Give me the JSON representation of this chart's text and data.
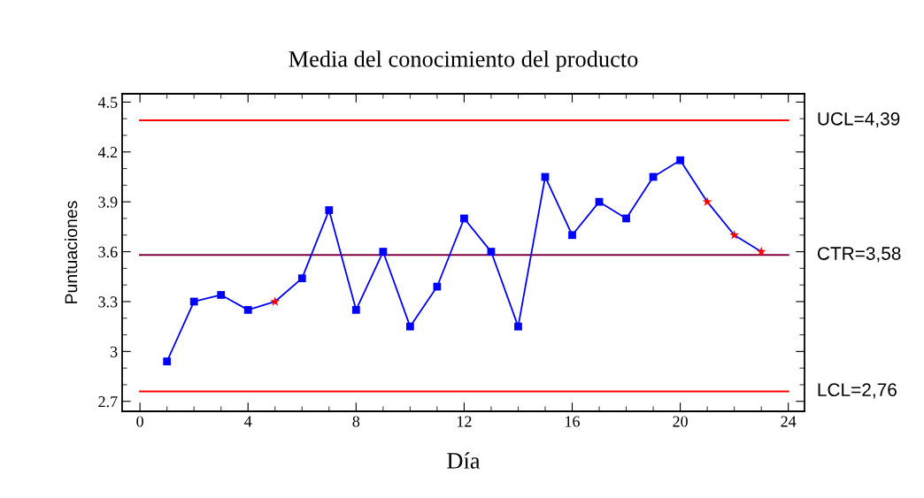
{
  "chart_data": {
    "type": "line",
    "title": "Media del conocimiento del producto",
    "xlabel": "Día",
    "ylabel": "Puntuaciones",
    "x": [
      1,
      2,
      3,
      4,
      5,
      6,
      7,
      8,
      9,
      10,
      11,
      12,
      13,
      14,
      15,
      16,
      17,
      18,
      19,
      20,
      21,
      22,
      23
    ],
    "series": [
      {
        "color": "#0000ff",
        "marker": "none",
        "values": [
          2.94,
          3.3,
          3.34,
          3.25,
          3.3,
          3.44,
          3.85,
          3.25,
          3.6,
          3.15,
          3.39,
          3.8,
          3.6,
          3.15,
          4.05,
          3.7,
          3.9,
          3.8,
          4.05,
          4.15,
          3.9,
          3.7,
          3.6
        ]
      },
      {
        "type": "scatter",
        "color": "#0000ff",
        "marker": "square",
        "x": [
          1,
          2,
          3,
          4,
          6,
          7,
          8,
          9,
          10,
          11,
          12,
          13,
          14,
          15,
          16,
          17,
          18,
          19,
          20
        ],
        "values": [
          2.94,
          3.3,
          3.34,
          3.25,
          3.44,
          3.85,
          3.25,
          3.6,
          3.15,
          3.39,
          3.8,
          3.6,
          3.15,
          4.05,
          3.7,
          3.9,
          3.8,
          4.05,
          4.15
        ]
      },
      {
        "type": "scatter",
        "color": "#ff0000",
        "marker": "star",
        "x": [
          5,
          21,
          22,
          23
        ],
        "values": [
          3.3,
          3.9,
          3.7,
          3.6
        ]
      }
    ],
    "xlim": [
      -0.66,
      24.6
    ],
    "xticks": [
      0,
      4,
      8,
      12,
      16,
      20,
      24
    ],
    "ylim": [
      2.64,
      4.55
    ],
    "yticks": [
      2.7,
      3.0,
      3.3,
      3.6,
      3.9,
      4.2,
      4.5
    ],
    "ref_lines": [
      {
        "axis": "y",
        "value": 4.39,
        "label": "UCL=4,39",
        "color": "#ff0000"
      },
      {
        "axis": "y",
        "value": 3.58,
        "label": "CTR=3,58",
        "color": "#800040"
      },
      {
        "axis": "y",
        "value": 2.76,
        "label": "LCL=2,76",
        "color": "#ff0000"
      }
    ],
    "grid": false,
    "legend": false
  }
}
